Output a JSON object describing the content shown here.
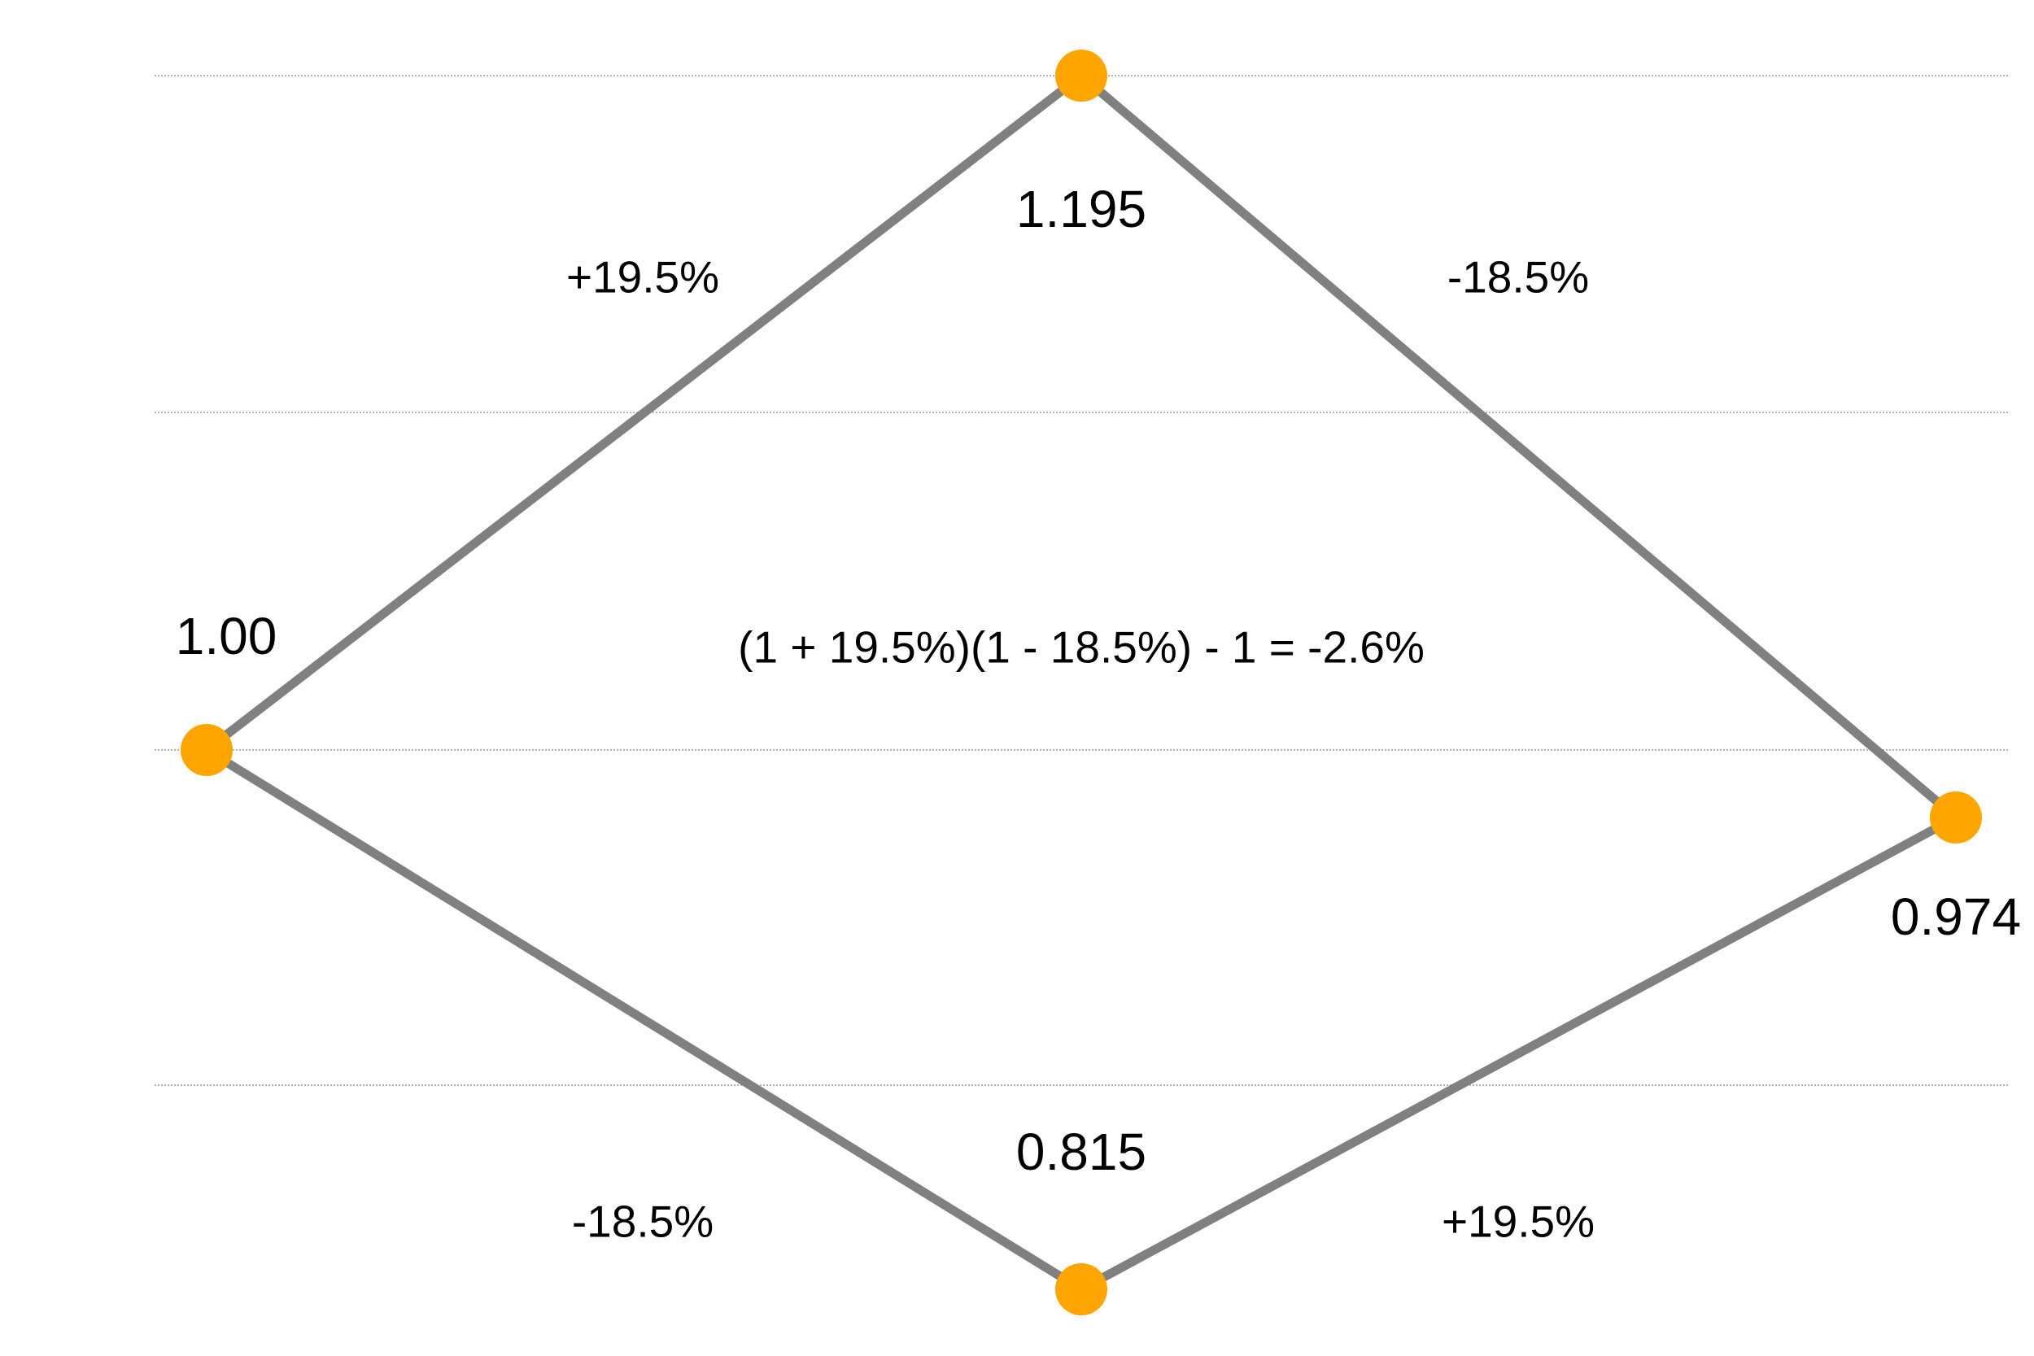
{
  "nodes": [
    {
      "label": "1.00"
    },
    {
      "label": "1.195"
    },
    {
      "label": "0.974"
    },
    {
      "label": "0.815"
    }
  ],
  "edges": [
    {
      "label": "+19.5%"
    },
    {
      "label": "-18.5%"
    },
    {
      "label": "-18.5%"
    },
    {
      "label": "+19.5%"
    }
  ],
  "formula": "(1 + 19.5%)(1 - 18.5%) - 1 = -2.6%"
}
